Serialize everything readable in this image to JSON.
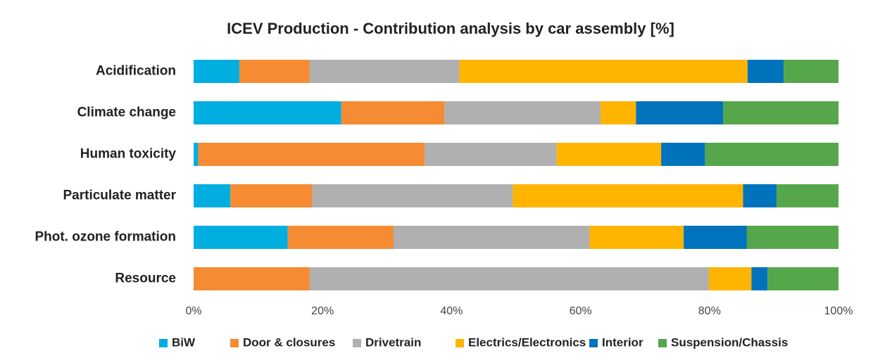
{
  "chart_data": {
    "type": "stacked_barh",
    "title": "ICEV Production - Contribution analysis by car assembly [%]",
    "categories": [
      "Acidification",
      "Climate change",
      "Human toxicity",
      "Particulate matter",
      "Phot. ozone formation",
      "Resource"
    ],
    "series": [
      {
        "name": "BiW",
        "color": "#00aee0",
        "values": [
          7.1,
          22.9,
          0.7,
          5.7,
          14.6,
          0
        ]
      },
      {
        "name": "Door & closures",
        "color": "#f58b33",
        "values": [
          10.9,
          16.0,
          35.1,
          12.7,
          16.4,
          18.0
        ]
      },
      {
        "name": "Drivetrain",
        "color": "#b0b0b0",
        "values": [
          23.2,
          24.2,
          20.5,
          31.1,
          30.4,
          61.9
        ]
      },
      {
        "name": "Electrics/Electronics",
        "color": "#ffb400",
        "values": [
          44.7,
          5.5,
          16.2,
          35.7,
          14.6,
          6.6
        ]
      },
      {
        "name": "Interior",
        "color": "#0073bc",
        "values": [
          5.6,
          13.5,
          6.8,
          5.2,
          9.8,
          2.5
        ]
      },
      {
        "name": "Suspension/Chassis",
        "color": "#56a64b",
        "values": [
          8.5,
          17.9,
          20.7,
          9.6,
          14.2,
          11.0
        ]
      }
    ],
    "xlim": [
      0,
      100
    ],
    "xticks": [
      {
        "value": 0,
        "label": "0%"
      },
      {
        "value": 20,
        "label": "20%"
      },
      {
        "value": 40,
        "label": "40%"
      },
      {
        "value": 60,
        "label": "60%"
      },
      {
        "value": 80,
        "label": "80%"
      },
      {
        "value": 100,
        "label": "100%"
      }
    ],
    "grid": false,
    "legend": "bottom"
  }
}
